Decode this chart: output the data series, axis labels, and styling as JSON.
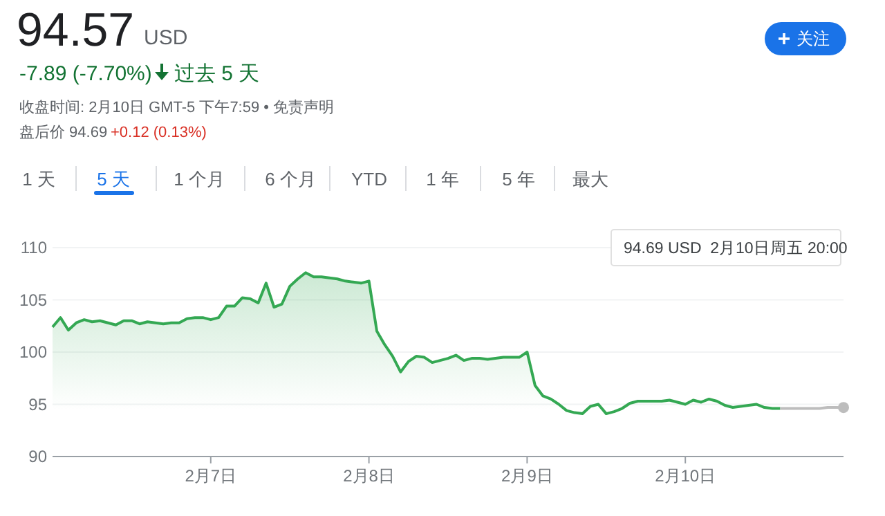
{
  "chart_data": {
    "type": "area",
    "title": "94.57",
    "subtitle": "USD",
    "annotations": [
      "-7.89 (-7.70%)",
      "过去 5 天",
      "收盘时间: 2月10日 GMT-5 下午7:59 • 免责声明",
      "盘后价 94.69",
      "+0.12 (0.13%)",
      "关注",
      "1 天",
      "5 天",
      "1 个月",
      "6 个月",
      "YTD",
      "1 年",
      "5 年",
      "最大",
      "94.69 USD  2月10日周五 20:00"
    ],
    "categories": [
      null,
      null,
      null,
      null,
      null,
      null,
      null,
      null,
      null,
      null,
      null,
      null,
      null,
      null,
      null,
      null,
      null,
      null,
      null,
      null,
      "2月7日",
      null,
      null,
      null,
      null,
      null,
      null,
      null,
      null,
      null,
      null,
      null,
      null,
      null,
      null,
      null,
      null,
      null,
      null,
      null,
      "2月8日",
      null,
      null,
      null,
      null,
      null,
      null,
      null,
      null,
      null,
      null,
      null,
      null,
      null,
      null,
      null,
      null,
      null,
      null,
      null,
      "2月9日",
      null,
      null,
      null,
      null,
      null,
      null,
      null,
      null,
      null,
      null,
      null,
      null,
      null,
      null,
      null,
      null,
      null,
      null,
      null,
      "2月10日",
      null,
      null,
      null,
      null,
      null,
      null,
      null,
      null,
      null,
      null,
      null,
      null,
      null,
      null,
      null,
      null,
      null,
      null,
      null,
      null
    ],
    "ylim": [
      90,
      110
    ],
    "yticks": [
      90,
      95,
      100,
      105,
      110
    ],
    "grid": "y",
    "series": [
      {
        "color": "#34a853",
        "values": [
          102.4,
          103.3,
          102.1,
          102.8,
          103.1,
          102.9,
          103,
          102.8,
          102.6,
          103,
          103,
          102.7,
          102.9,
          102.8,
          102.7,
          102.8,
          102.8,
          103.2,
          103.3,
          103.3,
          103.1,
          103.3,
          104.4,
          104.4,
          105.2,
          105.1,
          104.7,
          106.6,
          104.3,
          104.6,
          106.3,
          107,
          107.6,
          107.2,
          107.2,
          107.1,
          107,
          106.8,
          106.7,
          106.6,
          106.8,
          102,
          100.7,
          99.6,
          98.1,
          99.1,
          99.6,
          99.5,
          99,
          99.2,
          99.4,
          99.7,
          99.2,
          99.4,
          99.4,
          99.3,
          99.4,
          99.5,
          99.5,
          99.5,
          100,
          96.8,
          95.8,
          95.5,
          95,
          94.4,
          94.2,
          94.1,
          94.8,
          95,
          94.1,
          94.3,
          94.6,
          95.1,
          95.3,
          95.3,
          95.3,
          95.3,
          95.4,
          95.2,
          95,
          95.4,
          95.2,
          95.5,
          95.3,
          94.9,
          94.7,
          94.8,
          94.9,
          95,
          94.7,
          94.6,
          94.6,
          null,
          null,
          null,
          null,
          null,
          null,
          null,
          null
        ]
      },
      {
        "type": "line",
        "color": "#bdbdbd",
        "values": [
          null,
          null,
          null,
          null,
          null,
          null,
          null,
          null,
          null,
          null,
          null,
          null,
          null,
          null,
          null,
          null,
          null,
          null,
          null,
          null,
          null,
          null,
          null,
          null,
          null,
          null,
          null,
          null,
          null,
          null,
          null,
          null,
          null,
          null,
          null,
          null,
          null,
          null,
          null,
          null,
          null,
          null,
          null,
          null,
          null,
          null,
          null,
          null,
          null,
          null,
          null,
          null,
          null,
          null,
          null,
          null,
          null,
          null,
          null,
          null,
          null,
          null,
          null,
          null,
          null,
          null,
          null,
          null,
          null,
          null,
          null,
          null,
          null,
          null,
          null,
          null,
          null,
          null,
          null,
          null,
          null,
          null,
          null,
          null,
          null,
          null,
          null,
          null,
          null,
          null,
          null,
          null,
          94.6,
          94.6,
          94.6,
          94.6,
          94.6,
          94.6,
          94.7,
          94.7,
          94.69
        ]
      }
    ]
  }
}
